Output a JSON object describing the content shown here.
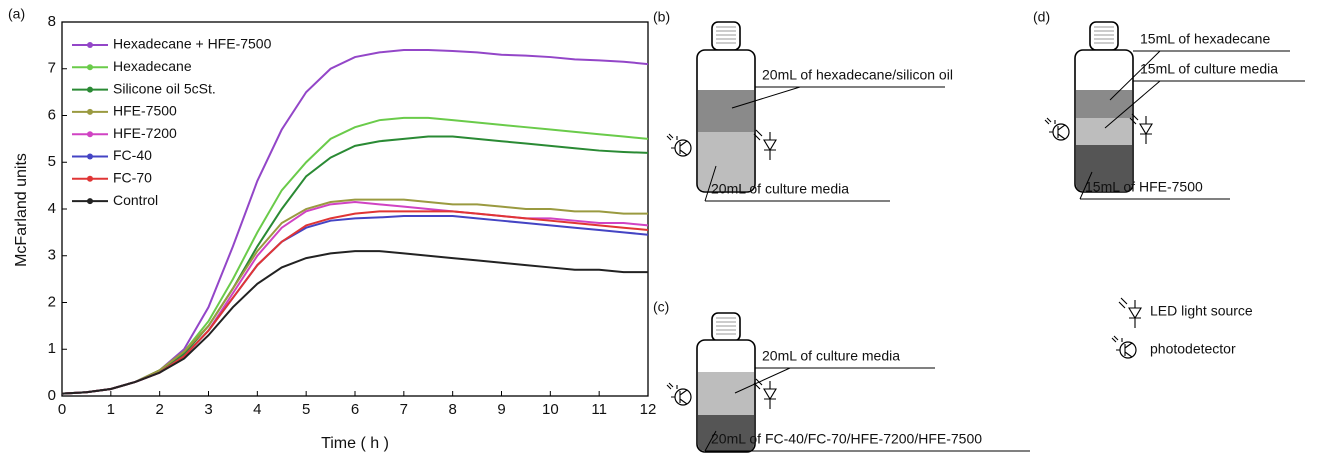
{
  "chart_data": {
    "type": "line",
    "panel_label": "(a)",
    "x_label": "Time ( h )",
    "y_label": "McFarland units",
    "x": [
      0,
      0.5,
      1,
      1.5,
      2,
      2.5,
      3,
      3.5,
      4,
      4.5,
      5,
      5.5,
      6,
      6.5,
      7,
      7.5,
      8,
      8.5,
      9,
      9.5,
      10,
      10.5,
      11,
      11.5,
      12
    ],
    "xlim": [
      0,
      12
    ],
    "xticks": [
      0,
      1,
      2,
      3,
      4,
      5,
      6,
      7,
      8,
      9,
      10,
      11,
      12
    ],
    "ylim": [
      0,
      8
    ],
    "yticks": [
      0,
      1,
      2,
      3,
      4,
      5,
      6,
      7,
      8
    ],
    "legend": "upper-left",
    "series": [
      {
        "name": "Hexadecane + HFE-7500",
        "color": "#9346c8",
        "values": [
          0.05,
          0.08,
          0.15,
          0.3,
          0.55,
          1.0,
          1.9,
          3.2,
          4.6,
          5.7,
          6.5,
          7.0,
          7.25,
          7.35,
          7.4,
          7.4,
          7.38,
          7.35,
          7.3,
          7.28,
          7.25,
          7.2,
          7.18,
          7.15,
          7.1
        ]
      },
      {
        "name": "Hexadecane",
        "color": "#6acb4a",
        "values": [
          0.05,
          0.08,
          0.15,
          0.3,
          0.55,
          0.95,
          1.6,
          2.5,
          3.5,
          4.4,
          5.0,
          5.5,
          5.75,
          5.9,
          5.95,
          5.95,
          5.9,
          5.85,
          5.8,
          5.75,
          5.7,
          5.65,
          5.6,
          5.55,
          5.5
        ]
      },
      {
        "name": "Silicone oil 5cSt.",
        "color": "#2a8a34",
        "values": [
          0.05,
          0.08,
          0.15,
          0.3,
          0.55,
          0.9,
          1.5,
          2.3,
          3.2,
          4.0,
          4.7,
          5.1,
          5.35,
          5.45,
          5.5,
          5.55,
          5.55,
          5.5,
          5.45,
          5.4,
          5.35,
          5.3,
          5.25,
          5.22,
          5.2
        ]
      },
      {
        "name": "HFE-7500",
        "color": "#9a9a40",
        "values": [
          0.05,
          0.08,
          0.15,
          0.3,
          0.55,
          0.95,
          1.5,
          2.3,
          3.1,
          3.7,
          4.0,
          4.15,
          4.2,
          4.2,
          4.2,
          4.15,
          4.1,
          4.1,
          4.05,
          4.0,
          4.0,
          3.95,
          3.95,
          3.9,
          3.9
        ]
      },
      {
        "name": "HFE-7200",
        "color": "#d043c3",
        "values": [
          0.05,
          0.08,
          0.15,
          0.3,
          0.5,
          0.85,
          1.4,
          2.2,
          3.0,
          3.6,
          3.95,
          4.1,
          4.15,
          4.1,
          4.05,
          4.0,
          3.95,
          3.9,
          3.85,
          3.8,
          3.8,
          3.75,
          3.7,
          3.7,
          3.65
        ]
      },
      {
        "name": "FC-40",
        "color": "#4444c4",
        "values": [
          0.05,
          0.08,
          0.15,
          0.3,
          0.5,
          0.85,
          1.4,
          2.1,
          2.8,
          3.3,
          3.6,
          3.75,
          3.8,
          3.82,
          3.85,
          3.85,
          3.85,
          3.8,
          3.75,
          3.7,
          3.65,
          3.6,
          3.55,
          3.5,
          3.45
        ]
      },
      {
        "name": "FC-70",
        "color": "#e03535",
        "values": [
          0.05,
          0.08,
          0.15,
          0.3,
          0.5,
          0.85,
          1.4,
          2.1,
          2.8,
          3.3,
          3.65,
          3.8,
          3.9,
          3.95,
          3.95,
          3.95,
          3.95,
          3.9,
          3.85,
          3.8,
          3.75,
          3.7,
          3.65,
          3.6,
          3.55
        ]
      },
      {
        "name": "Control",
        "color": "#222222",
        "values": [
          0.05,
          0.08,
          0.15,
          0.3,
          0.5,
          0.8,
          1.3,
          1.9,
          2.4,
          2.75,
          2.95,
          3.05,
          3.1,
          3.1,
          3.05,
          3.0,
          2.95,
          2.9,
          2.85,
          2.8,
          2.75,
          2.7,
          2.7,
          2.65,
          2.65
        ]
      }
    ]
  },
  "diagrams": {
    "b": {
      "label": "(b)",
      "top": "20mL of hexadecane/silicon oil",
      "bottom": "20mL of culture media"
    },
    "c": {
      "label": "(c)",
      "top": "20mL of culture media",
      "bottom": "20mL of FC-40/FC-70/HFE-7200/HFE-7500"
    },
    "d": {
      "label": "(d)",
      "top": "15mL of hexadecane",
      "middle": "15mL of culture media",
      "bottom": "15mL of HFE-7500"
    },
    "key": {
      "led": "LED light source",
      "detector": "photodetector"
    }
  }
}
